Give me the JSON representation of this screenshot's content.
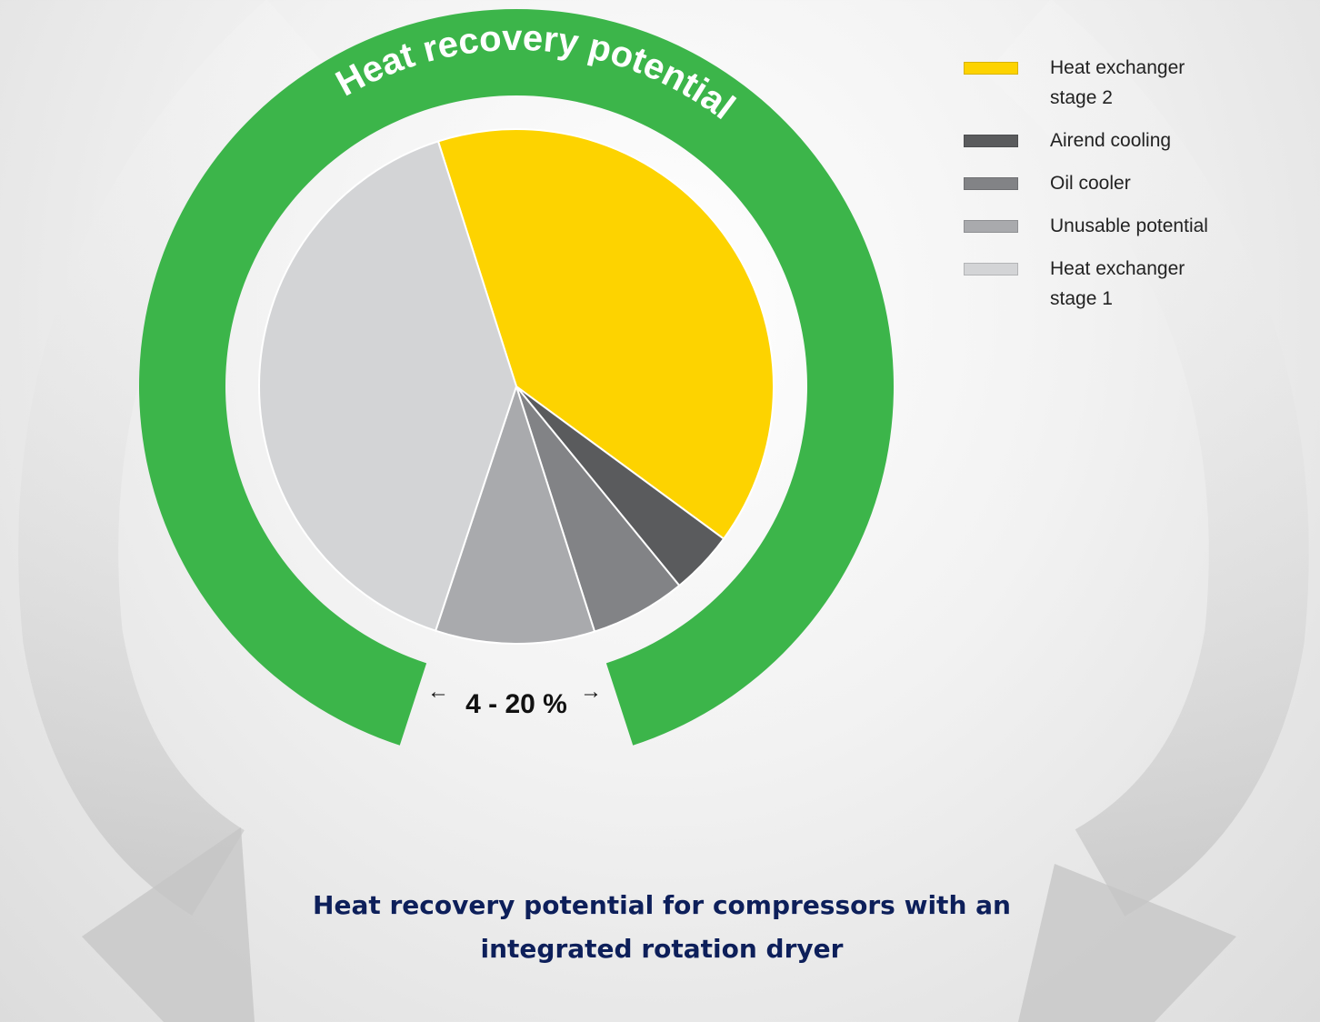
{
  "chart_data": {
    "type": "pie",
    "title": "Heat recovery potential for compressors with an integrated rotation dryer",
    "annotations": [
      "Heat recovery potential",
      "4 - 20 %"
    ],
    "categories": [
      "Heat exchanger stage 2",
      "Airend cooling",
      "Oil cooler",
      "Unusable potential",
      "Heat exchanger stage 1"
    ],
    "values": [
      40,
      4,
      6,
      10,
      40
    ],
    "colors": [
      "#fdd300",
      "#5a5b5d",
      "#828386",
      "#a9aaad",
      "#d3d4d6"
    ],
    "ring_color": "#3cb54a",
    "legend": "top-right"
  }
}
